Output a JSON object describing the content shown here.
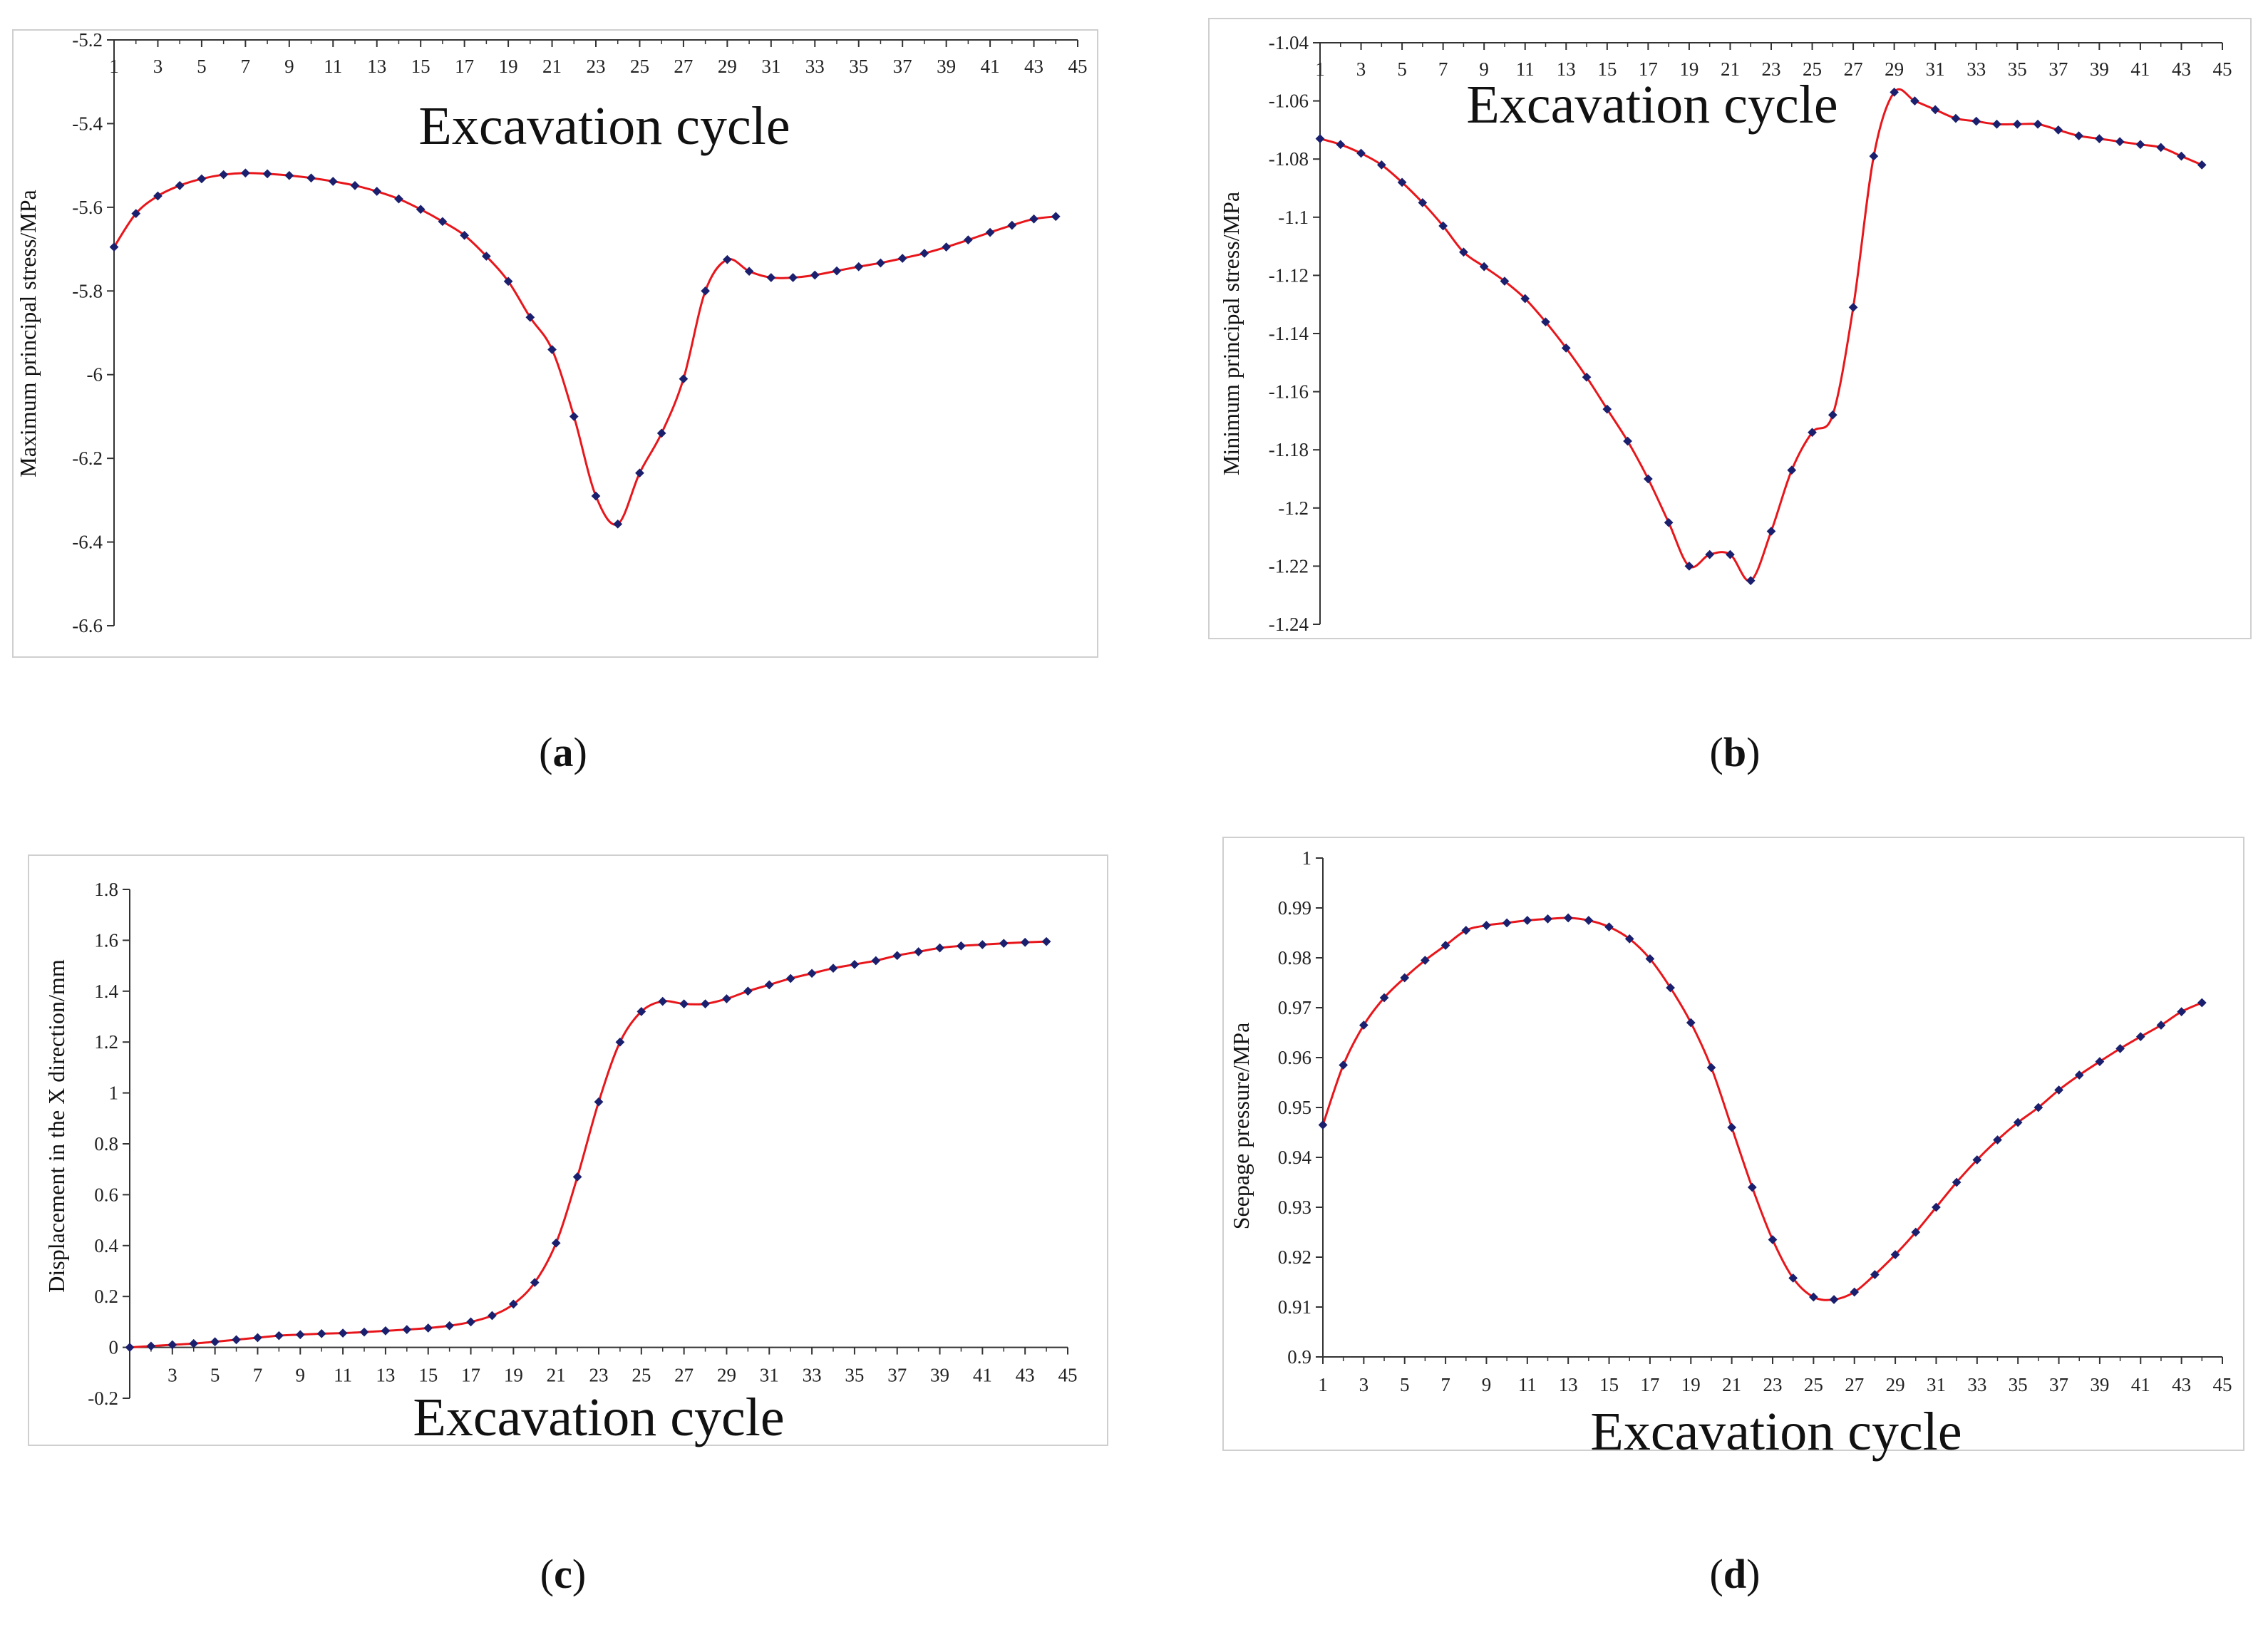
{
  "figure": {
    "panel_captions": [
      "a",
      "b",
      "c",
      "d"
    ]
  },
  "chart_data": [
    {
      "id": "a",
      "type": "line",
      "title": "",
      "xlabel": "Excavation cycle",
      "ylabel": "Maximum principal stress/MPa",
      "x": [
        1,
        2,
        3,
        4,
        5,
        6,
        7,
        8,
        9,
        10,
        11,
        12,
        13,
        14,
        15,
        16,
        17,
        18,
        19,
        20,
        21,
        22,
        23,
        24,
        25,
        26,
        27,
        28,
        29,
        30,
        31,
        32,
        33,
        34,
        35,
        36,
        37,
        38,
        39,
        40,
        41,
        42,
        43,
        44
      ],
      "series": [
        {
          "name": "Maximum principal stress",
          "values": [
            -5.695,
            -5.615,
            -5.573,
            -5.548,
            -5.532,
            -5.522,
            -5.518,
            -5.52,
            -5.524,
            -5.53,
            -5.538,
            -5.548,
            -5.562,
            -5.58,
            -5.605,
            -5.634,
            -5.667,
            -5.717,
            -5.777,
            -5.863,
            -5.94,
            -6.1,
            -6.29,
            -6.357,
            -6.235,
            -6.14,
            -6.01,
            -5.8,
            -5.725,
            -5.753,
            -5.768,
            -5.768,
            -5.762,
            -5.752,
            -5.742,
            -5.733,
            -5.722,
            -5.71,
            -5.695,
            -5.678,
            -5.66,
            -5.643,
            -5.628,
            -5.622
          ]
        }
      ],
      "line_color": "#e8161b",
      "marker_color": "#1a1f6e",
      "ylim": [
        -6.6,
        -5.2
      ],
      "yticks": [
        -5.2,
        -5.4,
        -5.6,
        -5.8,
        -6,
        -6.2,
        -6.4,
        -6.6
      ],
      "ytick_labels": [
        "-5.2",
        "-5.4",
        "-5.6",
        "-5.8",
        "-6",
        "-6.2",
        "-6.4",
        "-6.6"
      ],
      "xticks": [
        "1",
        "3",
        "5",
        "7",
        "9",
        "11",
        "13",
        "15",
        "17",
        "19",
        "21",
        "23",
        "25",
        "27",
        "29",
        "31",
        "33",
        "35",
        "37",
        "39",
        "41",
        "43",
        "45"
      ],
      "xlim": [
        1,
        45
      ],
      "x_axis_position": "top",
      "grid": false
    },
    {
      "id": "b",
      "type": "line",
      "title": "",
      "xlabel": "Excavation cycle",
      "ylabel": "Minimum principal stress/MPa",
      "x": [
        1,
        2,
        3,
        4,
        5,
        6,
        7,
        8,
        9,
        10,
        11,
        12,
        13,
        14,
        15,
        16,
        17,
        18,
        19,
        20,
        21,
        22,
        23,
        24,
        25,
        26,
        27,
        28,
        29,
        30,
        31,
        32,
        33,
        34,
        35,
        36,
        37,
        38,
        39,
        40,
        41,
        42,
        43,
        44
      ],
      "series": [
        {
          "name": "Minimum principal stress",
          "values": [
            -1.073,
            -1.075,
            -1.078,
            -1.082,
            -1.088,
            -1.095,
            -1.103,
            -1.112,
            -1.117,
            -1.122,
            -1.128,
            -1.136,
            -1.145,
            -1.155,
            -1.166,
            -1.177,
            -1.19,
            -1.205,
            -1.22,
            -1.216,
            -1.216,
            -1.225,
            -1.208,
            -1.187,
            -1.174,
            -1.168,
            -1.131,
            -1.079,
            -1.057,
            -1.06,
            -1.063,
            -1.066,
            -1.067,
            -1.068,
            -1.068,
            -1.068,
            -1.07,
            -1.072,
            -1.073,
            -1.074,
            -1.075,
            -1.076,
            -1.079,
            -1.082
          ]
        }
      ],
      "line_color": "#e8161b",
      "marker_color": "#1a1f6e",
      "ylim": [
        -1.24,
        -1.04
      ],
      "yticks": [
        -1.04,
        -1.06,
        -1.08,
        -1.1,
        -1.12,
        -1.14,
        -1.16,
        -1.18,
        -1.2,
        -1.22,
        -1.24
      ],
      "ytick_labels": [
        "-1.04",
        "-1.06",
        "-1.08",
        "-1.1",
        "-1.12",
        "-1.14",
        "-1.16",
        "-1.18",
        "-1.2",
        "-1.22",
        "-1.24"
      ],
      "xticks": [
        "1",
        "3",
        "5",
        "7",
        "9",
        "11",
        "13",
        "15",
        "17",
        "19",
        "21",
        "23",
        "25",
        "27",
        "29",
        "31",
        "33",
        "35",
        "37",
        "39",
        "41",
        "43",
        "45"
      ],
      "xlim": [
        1,
        45
      ],
      "x_axis_position": "top",
      "grid": false
    },
    {
      "id": "c",
      "type": "line",
      "title": "",
      "xlabel": "Excavation cycle",
      "ylabel": "Displacement in the X direction/mm",
      "x": [
        1,
        2,
        3,
        4,
        5,
        6,
        7,
        8,
        9,
        10,
        11,
        12,
        13,
        14,
        15,
        16,
        17,
        18,
        19,
        20,
        21,
        22,
        23,
        24,
        25,
        26,
        27,
        28,
        29,
        30,
        31,
        32,
        33,
        34,
        35,
        36,
        37,
        38,
        39,
        40,
        41,
        42,
        43,
        44
      ],
      "series": [
        {
          "name": "Displacement in the X direction",
          "values": [
            0,
            0.005,
            0.01,
            0.015,
            0.022,
            0.03,
            0.038,
            0.046,
            0.05,
            0.054,
            0.056,
            0.06,
            0.065,
            0.07,
            0.076,
            0.085,
            0.1,
            0.125,
            0.17,
            0.255,
            0.41,
            0.67,
            0.965,
            1.2,
            1.32,
            1.36,
            1.35,
            1.35,
            1.37,
            1.4,
            1.425,
            1.45,
            1.47,
            1.49,
            1.505,
            1.52,
            1.54,
            1.555,
            1.57,
            1.578,
            1.583,
            1.588,
            1.592,
            1.595
          ]
        }
      ],
      "line_color": "#e8161b",
      "marker_color": "#1a1f6e",
      "ylim": [
        -0.2,
        1.8
      ],
      "yticks": [
        1.8,
        1.6,
        1.4,
        1.2,
        1,
        0.8,
        0.6,
        0.4,
        0.2,
        0,
        -0.2
      ],
      "ytick_labels": [
        "1.8",
        "1.6",
        "1.4",
        "1.2",
        "1",
        "0.8",
        "0.6",
        "0.4",
        "0.2",
        "0",
        "-0.2"
      ],
      "xticks": [
        "3",
        "5",
        "7",
        "9",
        "11",
        "13",
        "15",
        "17",
        "19",
        "21",
        "23",
        "25",
        "27",
        "29",
        "31",
        "33",
        "35",
        "37",
        "39",
        "41",
        "43",
        "45"
      ],
      "xlim": [
        1,
        45
      ],
      "x_axis_position": "zero",
      "grid": false
    },
    {
      "id": "d",
      "type": "line",
      "title": "",
      "xlabel": "Excavation cycle",
      "ylabel": "Seepage pressure/MPa",
      "x": [
        1,
        2,
        3,
        4,
        5,
        6,
        7,
        8,
        9,
        10,
        11,
        12,
        13,
        14,
        15,
        16,
        17,
        18,
        19,
        20,
        21,
        22,
        23,
        24,
        25,
        26,
        27,
        28,
        29,
        30,
        31,
        32,
        33,
        34,
        35,
        36,
        37,
        38,
        39,
        40,
        41,
        42,
        43,
        44
      ],
      "series": [
        {
          "name": "Seepage pressure",
          "values": [
            0.9465,
            0.9585,
            0.9665,
            0.972,
            0.976,
            0.9795,
            0.9825,
            0.9855,
            0.9865,
            0.987,
            0.9875,
            0.9878,
            0.988,
            0.9875,
            0.9862,
            0.9838,
            0.9798,
            0.974,
            0.967,
            0.958,
            0.946,
            0.934,
            0.9235,
            0.9158,
            0.912,
            0.9115,
            0.913,
            0.9165,
            0.9205,
            0.925,
            0.93,
            0.935,
            0.9395,
            0.9435,
            0.947,
            0.95,
            0.9535,
            0.9565,
            0.9592,
            0.9618,
            0.9642,
            0.9665,
            0.9692,
            0.971
          ]
        }
      ],
      "line_color": "#e8161b",
      "marker_color": "#1a1f6e",
      "ylim": [
        0.9,
        1
      ],
      "yticks": [
        1,
        0.99,
        0.98,
        0.97,
        0.96,
        0.95,
        0.94,
        0.93,
        0.92,
        0.91,
        0.9
      ],
      "ytick_labels": [
        "1",
        "0.99",
        "0.98",
        "0.97",
        "0.96",
        "0.95",
        "0.94",
        "0.93",
        "0.92",
        "0.91",
        "0.9"
      ],
      "xticks": [
        "1",
        "3",
        "5",
        "7",
        "9",
        "11",
        "13",
        "15",
        "17",
        "19",
        "21",
        "23",
        "25",
        "27",
        "29",
        "31",
        "33",
        "35",
        "37",
        "39",
        "41",
        "43",
        "45"
      ],
      "xlim": [
        1,
        45
      ],
      "x_axis_position": "bottom",
      "grid": false
    }
  ]
}
